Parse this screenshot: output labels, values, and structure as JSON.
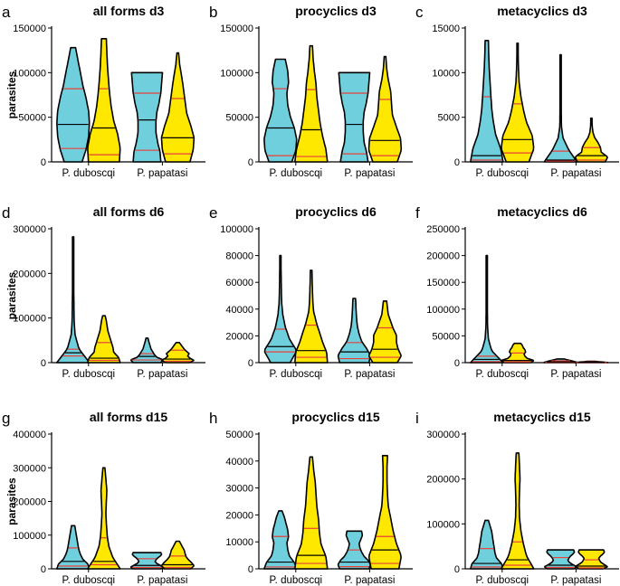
{
  "colors": {
    "duboscqi": "#6fcfdc",
    "papatasi": "#ffe800",
    "median": "#e8413a",
    "quartile": "#000000"
  },
  "chart_data": [
    {
      "letter": "a",
      "type": "violin",
      "title": "all forms d3",
      "ylabel": "parasites",
      "ylim": [
        0,
        150000
      ],
      "yticks": [
        "0",
        "50000",
        "100000",
        "150000"
      ],
      "categories": [
        "P. duboscqi",
        "P. papatasi"
      ],
      "violins": [
        {
          "group": "P. duboscqi",
          "color": "duboscqi",
          "min": 0,
          "max": 128000,
          "median": 42000,
          "q1": 15000,
          "q3": 82000,
          "profile": [
            0.55,
            0.8,
            0.95,
            1,
            0.95,
            0.8,
            0.6,
            0.45,
            0.3,
            0.15
          ]
        },
        {
          "group": "P. duboscqi",
          "color": "papatasi",
          "min": 0,
          "max": 138000,
          "median": 38000,
          "q1": 8000,
          "q3": 82000,
          "profile": [
            0.95,
            1,
            0.85,
            0.6,
            0.45,
            0.35,
            0.28,
            0.22,
            0.18,
            0.15
          ]
        },
        {
          "group": "P. papatasi",
          "color": "duboscqi",
          "min": 0,
          "max": 100000,
          "median": 47000,
          "q1": 13000,
          "q3": 77000,
          "profile": [
            0.85,
            0.8,
            0.65,
            0.55,
            0.55,
            0.6,
            0.75,
            0.85,
            0.9,
            0.95
          ]
        },
        {
          "group": "P. papatasi",
          "color": "papatasi",
          "min": 0,
          "max": 122000,
          "median": 27000,
          "q1": 9000,
          "q3": 71000,
          "profile": [
            0.75,
            0.95,
            1,
            0.8,
            0.55,
            0.45,
            0.35,
            0.25,
            0.12,
            0.05
          ]
        }
      ]
    },
    {
      "letter": "b",
      "type": "violin",
      "title": "procyclics d3",
      "ylabel": "",
      "ylim": [
        0,
        150000
      ],
      "yticks": [
        "0",
        "50000",
        "100000",
        "150000"
      ],
      "categories": [
        "P. duboscqi",
        "P. papatasi"
      ],
      "violins": [
        {
          "group": "P. duboscqi",
          "color": "duboscqi",
          "min": 0,
          "max": 115000,
          "median": 38000,
          "q1": 7000,
          "q3": 82000,
          "profile": [
            0.7,
            0.95,
            1,
            0.85,
            0.6,
            0.45,
            0.4,
            0.5,
            0.45,
            0.3
          ]
        },
        {
          "group": "P. duboscqi",
          "color": "papatasi",
          "min": 0,
          "max": 130000,
          "median": 36000,
          "q1": 6000,
          "q3": 81000,
          "profile": [
            1,
            0.9,
            0.7,
            0.55,
            0.45,
            0.35,
            0.3,
            0.2,
            0.12,
            0.08
          ]
        },
        {
          "group": "P. papatasi",
          "color": "duboscqi",
          "min": 0,
          "max": 100000,
          "median": 42000,
          "q1": 9000,
          "q3": 77000,
          "profile": [
            0.85,
            0.75,
            0.6,
            0.55,
            0.55,
            0.6,
            0.75,
            0.85,
            0.9,
            0.95
          ]
        },
        {
          "group": "P. papatasi",
          "color": "papatasi",
          "min": 0,
          "max": 118000,
          "median": 24000,
          "q1": 7000,
          "q3": 70000,
          "profile": [
            0.75,
            1,
            0.95,
            0.7,
            0.45,
            0.4,
            0.35,
            0.2,
            0.1,
            0.05
          ]
        }
      ]
    },
    {
      "letter": "c",
      "type": "violin",
      "title": "metacyclics d3",
      "ylabel": "",
      "ylim": [
        0,
        15000
      ],
      "yticks": [
        "0",
        "5000",
        "10000",
        "15000"
      ],
      "categories": [
        "P. duboscqi",
        "P. papatasi"
      ],
      "violins": [
        {
          "group": "P. duboscqi",
          "color": "duboscqi",
          "min": 0,
          "max": 13600,
          "median": 700,
          "q1": 200,
          "q3": 7300,
          "profile": [
            1,
            0.85,
            0.55,
            0.4,
            0.3,
            0.25,
            0.2,
            0.15,
            0.12,
            0.1
          ]
        },
        {
          "group": "P. duboscqi",
          "color": "papatasi",
          "min": 0,
          "max": 13300,
          "median": 2500,
          "q1": 1000,
          "q3": 6500,
          "profile": [
            0.7,
            1,
            0.9,
            0.55,
            0.35,
            0.2,
            0.1,
            0.06,
            0.04,
            0.03
          ]
        },
        {
          "group": "P. papatasi",
          "color": "duboscqi",
          "min": 0,
          "max": 12000,
          "median": 200,
          "q1": 100,
          "q3": 1200,
          "profile": [
            1,
            0.5,
            0.15,
            0.05,
            0.04,
            0.03,
            0.03,
            0.03,
            0.02,
            0.02
          ]
        },
        {
          "group": "P. papatasi",
          "color": "papatasi",
          "min": 0,
          "max": 4900,
          "median": 700,
          "q1": 200,
          "q3": 1600,
          "profile": [
            0.85,
            1,
            0.6,
            0.55,
            0.4,
            0.2,
            0.1,
            0.06,
            0.04,
            0.03
          ]
        }
      ]
    },
    {
      "letter": "d",
      "type": "violin",
      "title": "all forms d6",
      "ylabel": "parasites",
      "ylim": [
        0,
        300000
      ],
      "yticks": [
        "0",
        "100000",
        "200000",
        "300000"
      ],
      "categories": [
        "P. duboscqi",
        "P. papatasi"
      ],
      "violins": [
        {
          "group": "P. duboscqi",
          "color": "duboscqi",
          "min": 0,
          "max": 282000,
          "median": 22000,
          "q1": 15000,
          "q3": 30000,
          "profile": [
            1,
            0.35,
            0.12,
            0.06,
            0.05,
            0.04,
            0.04,
            0.04,
            0.03,
            0.03
          ]
        },
        {
          "group": "P. duboscqi",
          "color": "papatasi",
          "min": 0,
          "max": 105000,
          "median": 10000,
          "q1": 5000,
          "q3": 45000,
          "profile": [
            1,
            0.9,
            0.6,
            0.55,
            0.45,
            0.35,
            0.25,
            0.2,
            0.15,
            0.08
          ]
        },
        {
          "group": "P. papatasi",
          "color": "duboscqi",
          "min": 0,
          "max": 55000,
          "median": 14000,
          "q1": 6000,
          "q3": 20000,
          "profile": [
            0.85,
            1,
            0.6,
            0.45,
            0.35,
            0.25,
            0.2,
            0.15,
            0.1,
            0.06
          ]
        },
        {
          "group": "P. papatasi",
          "color": "papatasi",
          "min": 0,
          "max": 45000,
          "median": 8000,
          "q1": 3000,
          "q3": 28000,
          "profile": [
            0.7,
            1,
            0.75,
            0.6,
            0.7,
            0.55,
            0.4,
            0.3,
            0.2,
            0.1
          ]
        }
      ]
    },
    {
      "letter": "e",
      "type": "violin",
      "title": "procyclics d6",
      "ylabel": "",
      "ylim": [
        0,
        100000
      ],
      "yticks": [
        "0",
        "20000",
        "40000",
        "60000",
        "80000",
        "100000"
      ],
      "categories": [
        "P. duboscqi",
        "P. papatasi"
      ],
      "violins": [
        {
          "group": "P. duboscqi",
          "color": "duboscqi",
          "min": 0,
          "max": 80000,
          "median": 12000,
          "q1": 8000,
          "q3": 25000,
          "profile": [
            0.6,
            1,
            0.55,
            0.3,
            0.15,
            0.08,
            0.06,
            0.05,
            0.04,
            0.04
          ]
        },
        {
          "group": "P. duboscqi",
          "color": "papatasi",
          "min": 0,
          "max": 69000,
          "median": 9000,
          "q1": 4000,
          "q3": 28000,
          "profile": [
            1,
            0.95,
            0.7,
            0.5,
            0.3,
            0.15,
            0.1,
            0.08,
            0.06,
            0.05
          ]
        },
        {
          "group": "P. papatasi",
          "color": "duboscqi",
          "min": 0,
          "max": 48000,
          "median": 8000,
          "q1": 3000,
          "q3": 15000,
          "profile": [
            0.9,
            1,
            0.75,
            0.45,
            0.3,
            0.2,
            0.15,
            0.12,
            0.1,
            0.08
          ]
        },
        {
          "group": "P. papatasi",
          "color": "papatasi",
          "min": 0,
          "max": 46000,
          "median": 10000,
          "q1": 4000,
          "q3": 26000,
          "profile": [
            0.75,
            1,
            0.8,
            0.7,
            0.7,
            0.5,
            0.35,
            0.2,
            0.15,
            0.1
          ]
        }
      ]
    },
    {
      "letter": "f",
      "type": "violin",
      "title": "metacyclics d6",
      "ylabel": "",
      "ylim": [
        0,
        250000
      ],
      "yticks": [
        "0",
        "50000",
        "100000",
        "150000",
        "200000",
        "250000"
      ],
      "categories": [
        "P. duboscqi",
        "P. papatasi"
      ],
      "violins": [
        {
          "group": "P. duboscqi",
          "color": "duboscqi",
          "min": 0,
          "max": 200000,
          "median": 6000,
          "q1": 2000,
          "q3": 12000,
          "profile": [
            1,
            0.3,
            0.1,
            0.05,
            0.04,
            0.03,
            0.03,
            0.03,
            0.02,
            0.02
          ]
        },
        {
          "group": "P. duboscqi",
          "color": "papatasi",
          "min": 0,
          "max": 36000,
          "median": 4000,
          "q1": 1500,
          "q3": 18000,
          "profile": [
            0.8,
            1,
            0.6,
            0.45,
            0.4,
            0.5,
            0.45,
            0.35,
            0.3,
            0.2
          ]
        },
        {
          "group": "P. papatasi",
          "color": "duboscqi",
          "min": 0,
          "max": 7000,
          "median": 1500,
          "q1": 500,
          "q3": 3500,
          "profile": [
            1,
            1,
            0.9,
            0.8,
            0.7,
            0.6,
            0.5,
            0.4,
            0.3,
            0.2
          ]
        },
        {
          "group": "P. papatasi",
          "color": "papatasi",
          "min": 0,
          "max": 2500,
          "median": 600,
          "q1": 200,
          "q3": 1200,
          "profile": [
            1,
            1,
            0.9,
            0.8,
            0.7,
            0.6,
            0.5,
            0.4,
            0.3,
            0.2
          ]
        }
      ]
    },
    {
      "letter": "g",
      "type": "violin",
      "title": "all forms d15",
      "ylabel": "parasites",
      "ylim": [
        0,
        400000
      ],
      "yticks": [
        "0",
        "100000",
        "200000",
        "300000",
        "400000"
      ],
      "categories": [
        "P. duboscqi",
        "P. papatasi"
      ],
      "violins": [
        {
          "group": "P. duboscqi",
          "color": "duboscqi",
          "min": 0,
          "max": 128000,
          "median": 22000,
          "q1": 8000,
          "q3": 62000,
          "profile": [
            1,
            0.9,
            0.6,
            0.45,
            0.35,
            0.3,
            0.25,
            0.2,
            0.15,
            0.1
          ]
        },
        {
          "group": "P. duboscqi",
          "color": "papatasi",
          "min": 0,
          "max": 300000,
          "median": 22000,
          "q1": 12000,
          "q3": 92000,
          "profile": [
            1,
            0.55,
            0.3,
            0.2,
            0.15,
            0.12,
            0.15,
            0.18,
            0.12,
            0.06
          ]
        },
        {
          "group": "P. papatasi",
          "color": "duboscqi",
          "min": 0,
          "max": 48000,
          "median": 10000,
          "q1": 4000,
          "q3": 30000,
          "profile": [
            0.85,
            1,
            0.8,
            0.6,
            0.5,
            0.55,
            0.65,
            0.8,
            0.9,
            0.85
          ]
        },
        {
          "group": "P. papatasi",
          "color": "papatasi",
          "min": 0,
          "max": 82000,
          "median": 12000,
          "q1": 4000,
          "q3": 38000,
          "profile": [
            0.8,
            1,
            0.85,
            0.65,
            0.5,
            0.45,
            0.4,
            0.3,
            0.2,
            0.1
          ]
        }
      ]
    },
    {
      "letter": "h",
      "type": "violin",
      "title": "procyclics d15",
      "ylabel": "",
      "ylim": [
        0,
        50000
      ],
      "yticks": [
        "0",
        "10000",
        "20000",
        "30000",
        "40000",
        "50000"
      ],
      "categories": [
        "P. duboscqi",
        "P. papatasi"
      ],
      "violins": [
        {
          "group": "P. duboscqi",
          "color": "duboscqi",
          "min": 0,
          "max": 21500,
          "median": 2500,
          "q1": 700,
          "q3": 12000,
          "profile": [
            1,
            0.85,
            0.55,
            0.45,
            0.4,
            0.5,
            0.45,
            0.35,
            0.25,
            0.1
          ]
        },
        {
          "group": "P. duboscqi",
          "color": "papatasi",
          "min": 0,
          "max": 41500,
          "median": 5000,
          "q1": 2000,
          "q3": 15000,
          "profile": [
            1,
            0.9,
            0.6,
            0.5,
            0.45,
            0.35,
            0.3,
            0.25,
            0.15,
            0.08
          ]
        },
        {
          "group": "P. papatasi",
          "color": "duboscqi",
          "min": 0,
          "max": 14000,
          "median": 2500,
          "q1": 800,
          "q3": 7000,
          "profile": [
            0.9,
            1,
            0.85,
            0.6,
            0.45,
            0.35,
            0.3,
            0.4,
            0.5,
            0.45
          ]
        },
        {
          "group": "P. papatasi",
          "color": "papatasi",
          "min": 0,
          "max": 42000,
          "median": 7000,
          "q1": 2000,
          "q3": 12000,
          "profile": [
            0.85,
            1,
            0.7,
            0.5,
            0.35,
            0.2,
            0.15,
            0.12,
            0.12,
            0.15
          ]
        }
      ]
    },
    {
      "letter": "i",
      "type": "violin",
      "title": "metacyclics d15",
      "ylabel": "",
      "ylim": [
        0,
        300000
      ],
      "yticks": [
        "0",
        "100000",
        "200000",
        "300000"
      ],
      "categories": [
        "P. duboscqi",
        "P. papatasi"
      ],
      "violins": [
        {
          "group": "P. duboscqi",
          "color": "duboscqi",
          "min": 0,
          "max": 108000,
          "median": 12000,
          "q1": 4000,
          "q3": 45000,
          "profile": [
            1,
            0.9,
            0.6,
            0.5,
            0.45,
            0.4,
            0.35,
            0.3,
            0.2,
            0.1
          ]
        },
        {
          "group": "P. duboscqi",
          "color": "papatasi",
          "min": 0,
          "max": 258000,
          "median": 20000,
          "q1": 8000,
          "q3": 60000,
          "profile": [
            1,
            0.55,
            0.35,
            0.2,
            0.12,
            0.1,
            0.12,
            0.15,
            0.12,
            0.08
          ]
        },
        {
          "group": "P. papatasi",
          "color": "duboscqi",
          "min": 0,
          "max": 42000,
          "median": 8000,
          "q1": 3000,
          "q3": 25000,
          "profile": [
            0.8,
            1,
            0.75,
            0.55,
            0.45,
            0.5,
            0.6,
            0.75,
            0.85,
            0.8
          ]
        },
        {
          "group": "P. papatasi",
          "color": "papatasi",
          "min": 0,
          "max": 42000,
          "median": 6000,
          "q1": 2000,
          "q3": 20000,
          "profile": [
            0.7,
            1,
            0.8,
            0.6,
            0.5,
            0.45,
            0.55,
            0.7,
            0.8,
            0.75
          ]
        }
      ]
    }
  ]
}
